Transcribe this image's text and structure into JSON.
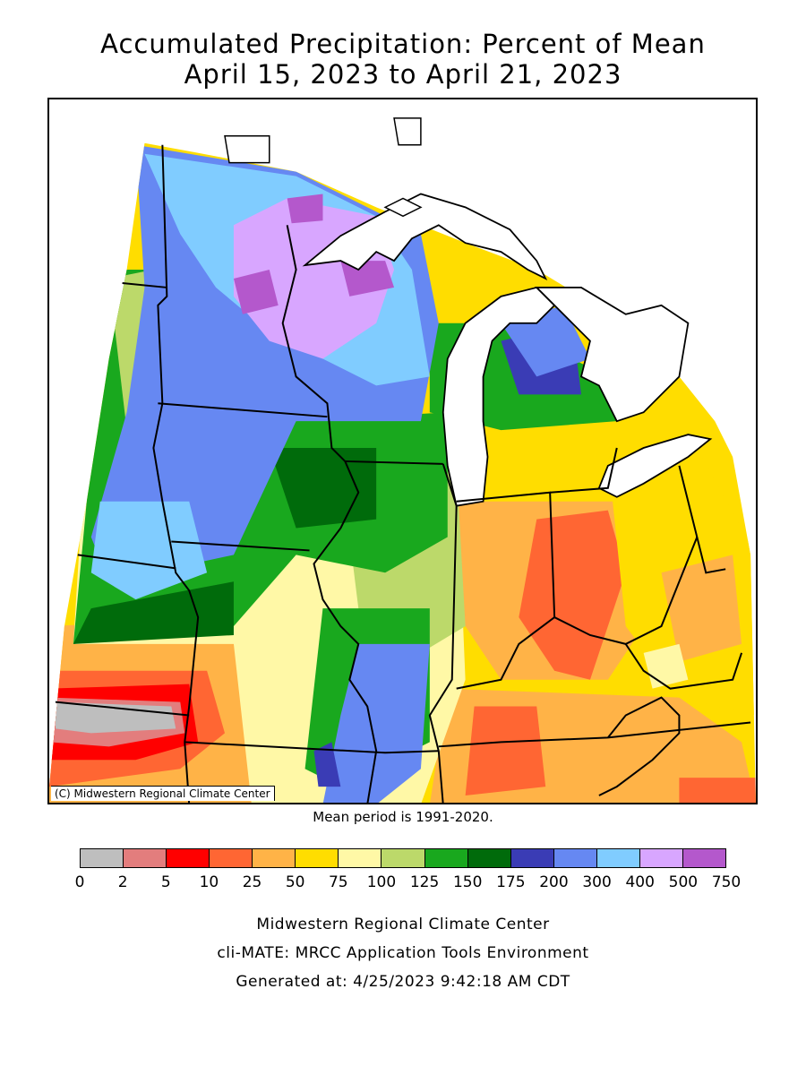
{
  "title_line1": "Accumulated Precipitation: Percent of Mean",
  "title_line2": "April 15, 2023 to April 21, 2023",
  "copyright": "(C) Midwestern Regional Climate Center",
  "mean_period": "Mean period is 1991-2020.",
  "legend": {
    "ticks": [
      "0",
      "2",
      "5",
      "10",
      "25",
      "50",
      "75",
      "100",
      "125",
      "150",
      "175",
      "200",
      "300",
      "400",
      "500",
      "750"
    ],
    "colors": [
      "#bebebe",
      "#e37d7d",
      "#ff0000",
      "#ff6633",
      "#ffb347",
      "#ffdd00",
      "#fff8a6",
      "#bcd96a",
      "#19a81e",
      "#006b0b",
      "#3a3cb5",
      "#6688f2",
      "#80ccff",
      "#d8a6ff",
      "#b458cc"
    ]
  },
  "footer_line1": "Midwestern Regional Climate Center",
  "footer_line2": "cli-MATE: MRCC Application Tools Environment",
  "footer_line3": "Generated at: 4/25/2023 9:42:18 AM CDT",
  "map_colors": {
    "lake": "#ffffff",
    "boundary": "#000000",
    "outside": "#ffffff"
  }
}
